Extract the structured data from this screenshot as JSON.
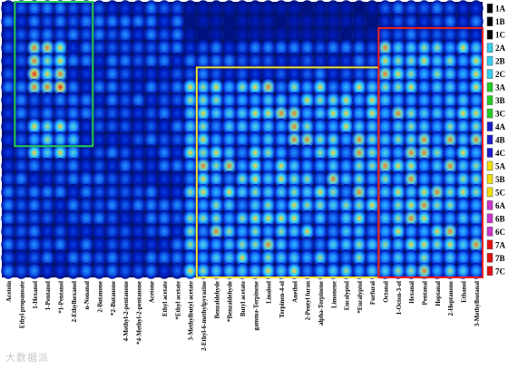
{
  "chart_data": {
    "type": "heatmap",
    "colormap": [
      "#000a55",
      "#0020c8",
      "#1a7cff",
      "#33d6ff",
      "#ffe233",
      "#ff2a00"
    ],
    "columns": [
      "Acetoin",
      "Ethyl propanoate",
      "1-Hexanol",
      "1-Pentanol",
      "*1-Pentanol",
      "2-Ethylhexanol",
      "n-Nonanal",
      "2-Butanone",
      "*2-Butanone",
      "4-Methyl-2-pentanone",
      "*4-Methyl-2-pentanone",
      "Acetone",
      "Ethyl acetate",
      "*Ethyl acetate",
      "3-Methylbutyl acetate",
      "2-Ethyl-6-methylpyrazine",
      "Benzaldehyde",
      "*Benzaldehyde",
      "Butyl acetate",
      "gamma-Terpinene",
      "Linalool",
      "Terpinen-4-ol",
      "Anethol",
      "2-Pentyl furan",
      "alpha-Terpinene",
      "Limonene",
      "Eucalyptol",
      "*Eucalyptol",
      "Furfural",
      "Octanal",
      "1-Octen-3-ol",
      "Hexanal",
      "Pentanal",
      "Heptanal",
      "2-Heptanone",
      "Ethanol",
      "3-Methylbutanal"
    ],
    "rows": [
      "1A",
      "1B",
      "1C",
      "2A",
      "2B",
      "2C",
      "3A",
      "3B",
      "3C",
      "4A",
      "4B",
      "4C",
      "5A",
      "5B",
      "5C",
      "6A",
      "6B",
      "6C",
      "7A",
      "7B",
      "7C"
    ],
    "row_colors": [
      "#000000",
      "#000000",
      "#000000",
      "#33ccee",
      "#33ccee",
      "#33ccee",
      "#22cc22",
      "#22cc22",
      "#22cc22",
      "#1a1acc",
      "#1a1acc",
      "#1a1acc",
      "#f0e000",
      "#f0e000",
      "#f0e000",
      "#cc33cc",
      "#cc33cc",
      "#cc33cc",
      "#e01010",
      "#e01010",
      "#e01010"
    ],
    "highlight_boxes": [
      {
        "color": "#22cc55",
        "label": "green"
      },
      {
        "color": "#f0e030",
        "label": "yellow"
      },
      {
        "color": "#ee2222",
        "label": "red"
      }
    ]
  },
  "watermark": "大数据派"
}
